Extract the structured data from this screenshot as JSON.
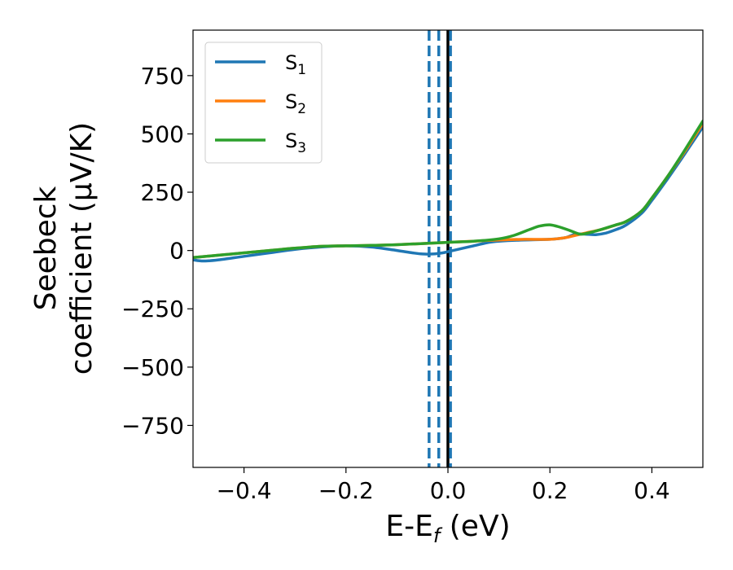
{
  "chart_data": {
    "type": "line",
    "xlabel": "E-E",
    "xlabel_sub": "f",
    "xlabel_unit": " (eV)",
    "ylabel_line1": "Seebeck",
    "ylabel_line2": "coefficient  (μV/K)",
    "xlim": [
      -0.5,
      0.5
    ],
    "ylim": [
      -930,
      945
    ],
    "xticks": [
      -0.4,
      -0.2,
      0.0,
      0.2,
      0.4
    ],
    "xtick_labels": [
      "−0.4",
      "−0.2",
      "0.0",
      "0.2",
      "0.4"
    ],
    "yticks": [
      -750,
      -500,
      -250,
      0,
      250,
      500,
      750
    ],
    "ytick_labels": [
      "−750",
      "−500",
      "−250",
      "0",
      "250",
      "500",
      "750"
    ],
    "grid": false,
    "legend": {
      "placement": "top-left"
    },
    "series": [
      {
        "label_main": "S",
        "label_sub": "1",
        "color": "#1f77b4",
        "x": [
          -0.5,
          -0.48,
          -0.45,
          -0.4,
          -0.35,
          -0.3,
          -0.25,
          -0.2,
          -0.15,
          -0.1,
          -0.07,
          -0.05,
          -0.03,
          -0.01,
          0.0,
          0.02,
          0.05,
          0.08,
          0.1,
          0.15,
          0.2,
          0.23,
          0.25,
          0.27,
          0.29,
          0.31,
          0.33,
          0.35,
          0.38,
          0.4,
          0.43,
          0.46,
          0.5
        ],
        "y": [
          -40,
          -45,
          -40,
          -25,
          -10,
          5,
          15,
          20,
          15,
          0,
          -10,
          -15,
          -15,
          -10,
          -5,
          5,
          20,
          35,
          40,
          45,
          48,
          55,
          70,
          70,
          68,
          75,
          90,
          110,
          160,
          215,
          305,
          400,
          530
        ]
      },
      {
        "label_main": "S",
        "label_sub": "2",
        "color": "#ff7f0e",
        "x": [
          -0.5,
          -0.45,
          -0.4,
          -0.35,
          -0.3,
          -0.25,
          -0.2,
          -0.15,
          -0.1,
          -0.05,
          0.0,
          0.05,
          0.1,
          0.15,
          0.2,
          0.23,
          0.25,
          0.27,
          0.3,
          0.33,
          0.35,
          0.38,
          0.4,
          0.43,
          0.46,
          0.5
        ],
        "y": [
          -30,
          -20,
          -10,
          0,
          10,
          18,
          20,
          22,
          25,
          30,
          35,
          40,
          45,
          48,
          48,
          55,
          65,
          75,
          90,
          110,
          125,
          170,
          225,
          315,
          410,
          545
        ]
      },
      {
        "label_main": "S",
        "label_sub": "3",
        "color": "#2ca02c",
        "x": [
          -0.5,
          -0.45,
          -0.4,
          -0.35,
          -0.3,
          -0.25,
          -0.2,
          -0.15,
          -0.1,
          -0.05,
          0.0,
          0.05,
          0.1,
          0.13,
          0.16,
          0.18,
          0.2,
          0.22,
          0.24,
          0.26,
          0.28,
          0.3,
          0.33,
          0.35,
          0.38,
          0.4,
          0.43,
          0.46,
          0.5
        ],
        "y": [
          -30,
          -20,
          -10,
          0,
          10,
          18,
          20,
          22,
          25,
          30,
          35,
          40,
          50,
          65,
          90,
          105,
          110,
          100,
          85,
          70,
          78,
          90,
          110,
          125,
          170,
          225,
          315,
          415,
          555
        ]
      }
    ],
    "vlines": [
      {
        "x": -0.037,
        "color": "#1f77b4",
        "style": "dashed"
      },
      {
        "x": -0.018,
        "color": "#1f77b4",
        "style": "dashed"
      },
      {
        "x": 0.0,
        "color": "#000000",
        "style": "solid"
      },
      {
        "x": 0.005,
        "color": "#1f77b4",
        "style": "dashed"
      }
    ]
  }
}
